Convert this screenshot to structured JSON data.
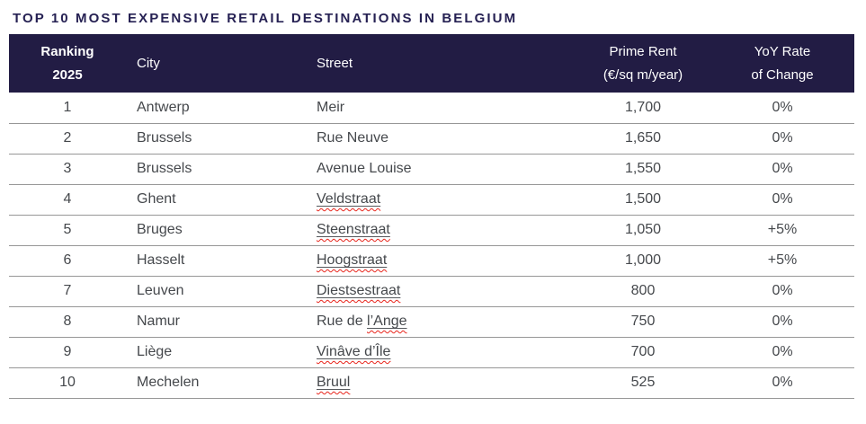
{
  "title": "TOP 10 MOST EXPENSIVE RETAIL DESTINATIONS IN BELGIUM",
  "colors": {
    "title_text": "#262153",
    "header_bg": "#221c44",
    "header_text": "#ffffff",
    "body_text": "#45484c",
    "row_divider": "#979797",
    "squiggle_red": "#e8251c"
  },
  "table": {
    "headers": {
      "ranking_line1": "Ranking",
      "ranking_line2": "2025",
      "city": "City",
      "street": "Street",
      "rent_line1": "Prime Rent",
      "rent_line2": "(€/sq m/year)",
      "yoy_line1": "YoY Rate",
      "yoy_line2": "of Change"
    },
    "rows": [
      {
        "rank": "1",
        "city": "Antwerp",
        "street_plain": "Meir",
        "street_misspelled": "",
        "rent": "1,700",
        "yoy": "0%"
      },
      {
        "rank": "2",
        "city": "Brussels",
        "street_plain": "Rue Neuve",
        "street_misspelled": "",
        "rent": "1,650",
        "yoy": "0%"
      },
      {
        "rank": "3",
        "city": "Brussels",
        "street_plain": "Avenue Louise",
        "street_misspelled": "",
        "rent": "1,550",
        "yoy": "0%"
      },
      {
        "rank": "4",
        "city": "Ghent",
        "street_plain": "",
        "street_misspelled": "Veldstraat",
        "rent": "1,500",
        "yoy": "0%"
      },
      {
        "rank": "5",
        "city": "Bruges",
        "street_plain": "",
        "street_misspelled": "Steenstraat",
        "rent": "1,050",
        "yoy": "+5%"
      },
      {
        "rank": "6",
        "city": "Hasselt",
        "street_plain": "",
        "street_misspelled": "Hoogstraat",
        "rent": "1,000",
        "yoy": "+5%"
      },
      {
        "rank": "7",
        "city": "Leuven",
        "street_plain": "",
        "street_misspelled": "Diestsestraat",
        "rent": "800",
        "yoy": "0%"
      },
      {
        "rank": "8",
        "city": "Namur",
        "street_plain": "Rue de ",
        "street_misspelled": "l’Ange",
        "rent": "750",
        "yoy": "0%"
      },
      {
        "rank": "9",
        "city": "Liège",
        "street_plain": "",
        "street_misspelled": "Vinâve d’Île",
        "rent": "700",
        "yoy": "0%"
      },
      {
        "rank": "10",
        "city": "Mechelen",
        "street_plain": "",
        "street_misspelled": "Bruul",
        "rent": "525",
        "yoy": "0%"
      }
    ]
  },
  "chart_data": {
    "type": "table",
    "title": "TOP 10 MOST EXPENSIVE RETAIL DESTINATIONS IN BELGIUM",
    "columns": [
      "Ranking 2025",
      "City",
      "Street",
      "Prime Rent (€/sq m/year)",
      "YoY Rate of Change"
    ],
    "rows": [
      [
        1,
        "Antwerp",
        "Meir",
        1700,
        "0%"
      ],
      [
        2,
        "Brussels",
        "Rue Neuve",
        1650,
        "0%"
      ],
      [
        3,
        "Brussels",
        "Avenue Louise",
        1550,
        "0%"
      ],
      [
        4,
        "Ghent",
        "Veldstraat",
        1500,
        "0%"
      ],
      [
        5,
        "Bruges",
        "Steenstraat",
        1050,
        "+5%"
      ],
      [
        6,
        "Hasselt",
        "Hoogstraat",
        1000,
        "+5%"
      ],
      [
        7,
        "Leuven",
        "Diestsestraat",
        800,
        "0%"
      ],
      [
        8,
        "Namur",
        "Rue de l’Ange",
        750,
        "0%"
      ],
      [
        9,
        "Liège",
        "Vinâve d’Île",
        700,
        "0%"
      ],
      [
        10,
        "Mechelen",
        "Bruul",
        525,
        "0%"
      ]
    ]
  }
}
